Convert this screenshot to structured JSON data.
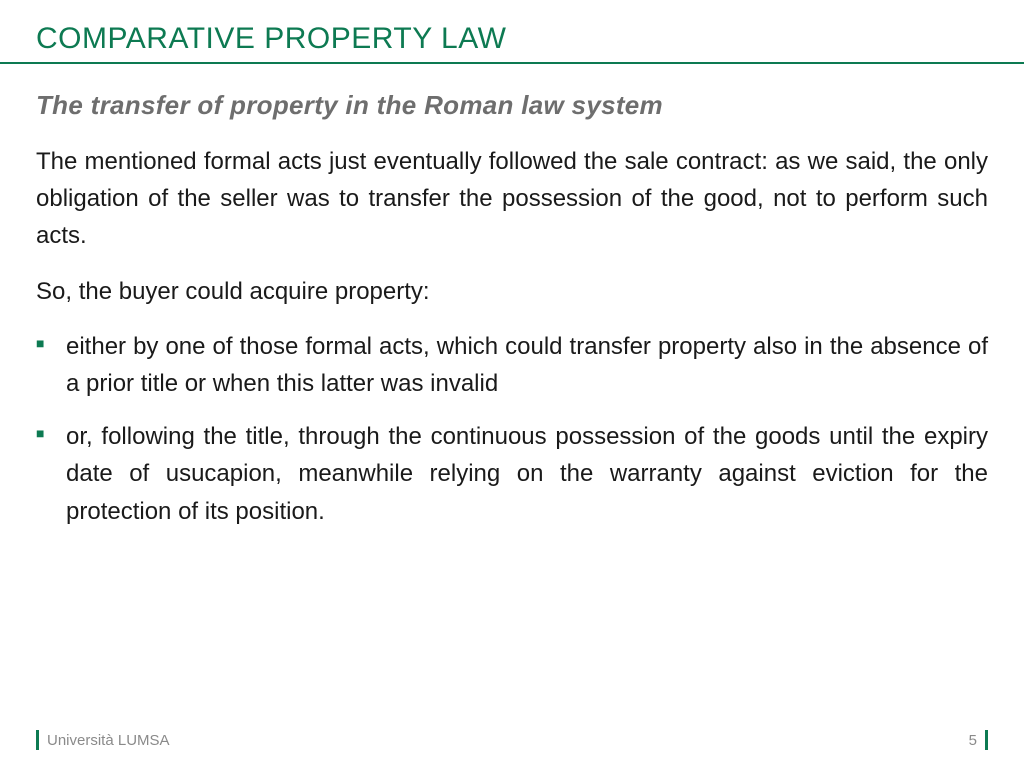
{
  "colors": {
    "accent": "#0d7a52",
    "title_text": "#0d7a52",
    "subtitle_text": "#6e6e6e",
    "body_text": "#1a1a1a",
    "footer_text": "#8a8a8a",
    "background": "#ffffff",
    "bullet": "#0d7a52",
    "rule": "#0d7a52"
  },
  "typography": {
    "title_fontsize": 30,
    "subtitle_fontsize": 26,
    "body_fontsize": 24,
    "footer_fontsize": 15,
    "subtitle_italic": true,
    "subtitle_bold": true,
    "body_justify": true,
    "line_height": 1.55
  },
  "title": "COMPARATIVE PROPERTY LAW",
  "subtitle": "The transfer of property in the Roman law system",
  "paragraphs": [
    "The mentioned formal acts just eventually followed the sale contract: as we said, the only obligation of the seller was to transfer the possession of the good, not to perform such acts.",
    "So, the buyer could acquire property:"
  ],
  "bullets": [
    "either by one of those formal acts, which could transfer property also in the absence of a prior title or when this latter was invalid",
    "or, following the title, through the continuous possession of the goods until the expiry date of usucapion, meanwhile relying on the warranty against eviction for the protection of its position."
  ],
  "footer": {
    "institution": "Università LUMSA",
    "page_number": "5"
  }
}
